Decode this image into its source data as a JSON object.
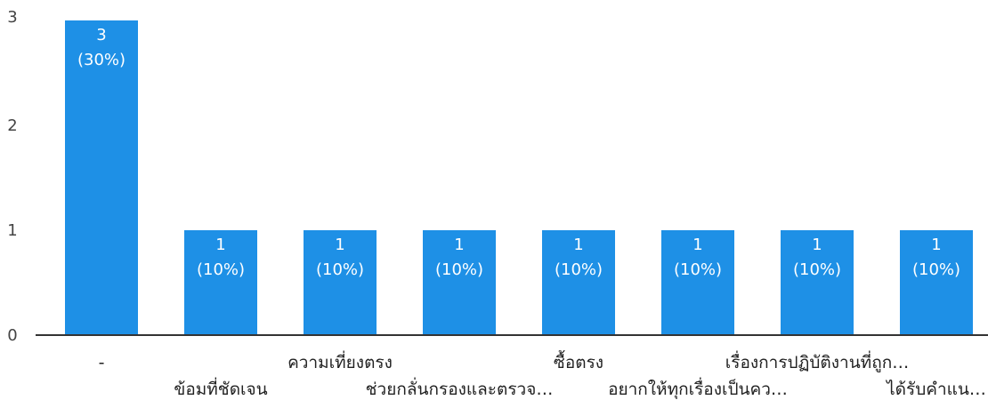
{
  "chart_data": {
    "type": "bar",
    "title": "",
    "xlabel": "",
    "ylabel": "",
    "ylim": [
      0,
      3
    ],
    "yticks": [
      "0",
      "1",
      "2",
      "3"
    ],
    "grid": false,
    "legend": "none",
    "bar_color": "#1e90e6",
    "categories": [
      "-",
      "ข้อมที่ชัดเจน",
      "ความเที่ยงตรง",
      "ช่วยกลั่นกรองและตรวจ…",
      "ซื้อตรง",
      "อยากให้ทุกเรื่องเป็นคว…",
      "เรื่องการปฏิบัติงานที่ถูก…",
      "ได้รับคำแน…"
    ],
    "values": [
      3,
      1,
      1,
      1,
      1,
      1,
      1,
      1
    ],
    "data_labels": [
      {
        "count": "3",
        "percent": "(30%)"
      },
      {
        "count": "1",
        "percent": "(10%)"
      },
      {
        "count": "1",
        "percent": "(10%)"
      },
      {
        "count": "1",
        "percent": "(10%)"
      },
      {
        "count": "1",
        "percent": "(10%)"
      },
      {
        "count": "1",
        "percent": "(10%)"
      },
      {
        "count": "1",
        "percent": "(10%)"
      },
      {
        "count": "1",
        "percent": "(10%)"
      }
    ]
  }
}
